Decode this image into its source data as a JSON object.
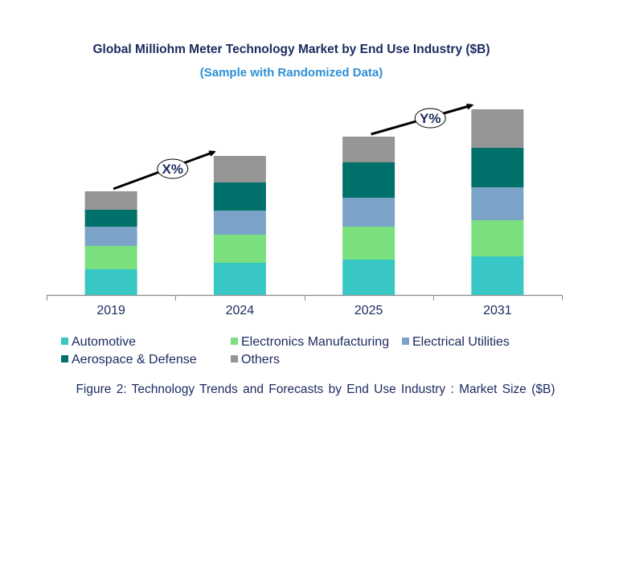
{
  "chart_data": {
    "type": "bar",
    "stacked": true,
    "title": "Global Milliohm  Meter Technology Market by End Use Industry ($B)",
    "subtitle": "(Sample with Randomized Data)",
    "xlabel": "",
    "ylabel": "",
    "categories": [
      "2019",
      "2024",
      "2025",
      "2031"
    ],
    "series": [
      {
        "name": "Automotive",
        "color": "#38c7c4",
        "values": [
          3.2,
          4.0,
          4.4,
          4.8
        ]
      },
      {
        "name": "Electronics Manufacturing",
        "color": "#7ae07e",
        "values": [
          2.9,
          3.5,
          4.1,
          4.5
        ]
      },
      {
        "name": "Electrical Utilities",
        "color": "#7ba3c8",
        "values": [
          2.4,
          3.0,
          3.6,
          4.1
        ]
      },
      {
        "name": "Aerospace & Defense",
        "color": "#00716a",
        "values": [
          2.1,
          3.5,
          4.4,
          4.9
        ]
      },
      {
        "name": "Others",
        "color": "#959595",
        "values": [
          2.3,
          3.3,
          3.2,
          4.8
        ]
      }
    ],
    "ylim": [
      0,
      26
    ],
    "grid": false,
    "legend_position": "bottom",
    "annotations": [
      {
        "label": "X%",
        "from": "2019",
        "to": "2024"
      },
      {
        "label": "Y%",
        "from": "2025",
        "to": "2031"
      }
    ],
    "caption": "Figure 2: Technology  Trends  and Forecasts by End Use Industry   : Market Size ($B)"
  }
}
